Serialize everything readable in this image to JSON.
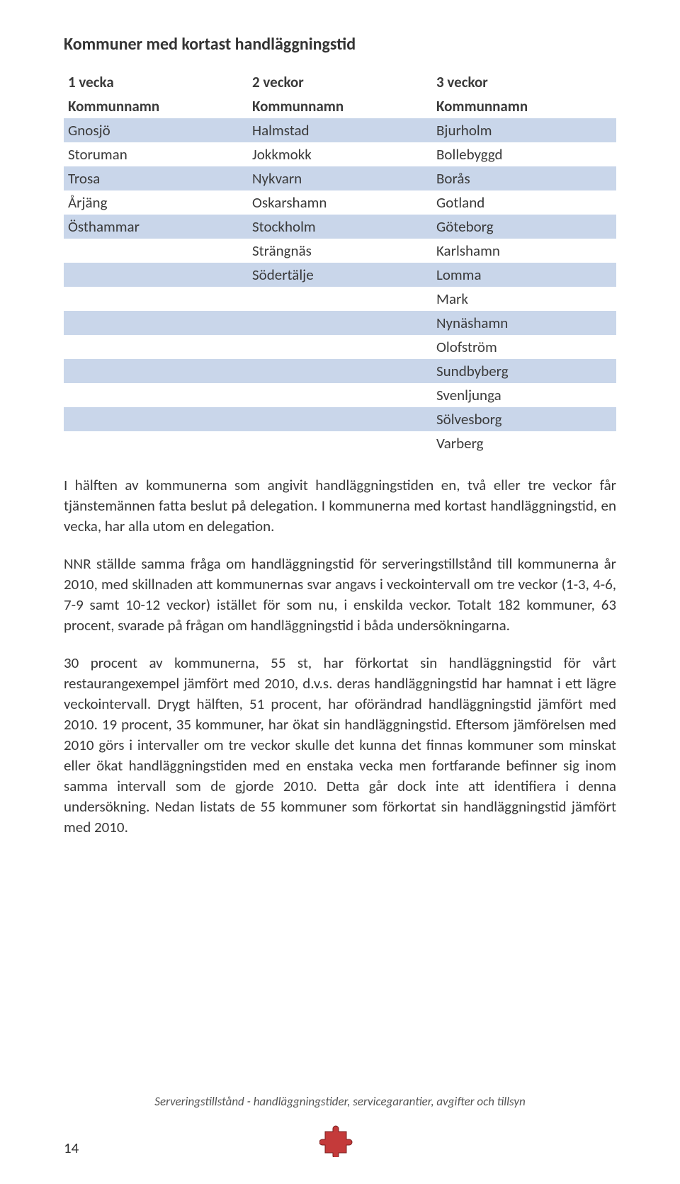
{
  "title": "Kommuner med kortast handläggningstid",
  "table": {
    "header1": [
      "1 vecka",
      "2 veckor",
      "3 veckor"
    ],
    "header2": [
      "Kommunnamn",
      "Kommunnamn",
      "Kommunnamn"
    ],
    "rows": [
      [
        "Gnosjö",
        "Halmstad",
        "Bjurholm"
      ],
      [
        "Storuman",
        "Jokkmokk",
        "Bollebyggd"
      ],
      [
        "Trosa",
        "Nykvarn",
        "Borås"
      ],
      [
        "Årjäng",
        "Oskarshamn",
        "Gotland"
      ],
      [
        "Östhammar",
        "Stockholm",
        "Göteborg"
      ],
      [
        "",
        "Strängnäs",
        "Karlshamn"
      ],
      [
        "",
        "Södertälje",
        "Lomma"
      ],
      [
        "",
        "",
        "Mark"
      ],
      [
        "",
        "",
        "Nynäshamn"
      ],
      [
        "",
        "",
        "Olofström"
      ],
      [
        "",
        "",
        "Sundbyberg"
      ],
      [
        "",
        "",
        "Svenljunga"
      ],
      [
        "",
        "",
        "Sölvesborg"
      ],
      [
        "",
        "",
        "Varberg"
      ]
    ],
    "band_colors": [
      "#c9d6ea",
      "#ffffff"
    ],
    "col_widths": [
      "33.3%",
      "33.3%",
      "33.3%"
    ]
  },
  "paragraphs": [
    "I hälften av kommunerna som angivit handläggningstiden en, två eller tre veckor får tjänstemännen fatta beslut på delegation. I kommunerna med kortast handläggningstid, en vecka, har alla utom en delegation.",
    "NNR ställde samma fråga om handläggningstid för serveringstillstånd till kommunerna år 2010, med skillnaden att kommunernas svar angavs i veckointervall om tre veckor (1-3, 4-6, 7-9 samt 10-12 veckor) istället för som nu, i enskilda veckor. Totalt 182 kommuner, 63 procent, svarade på frågan om handläggningstid i båda undersökningarna.",
    "30 procent av kommunerna, 55 st, har förkortat sin handläggningstid för vårt restaurangexempel jämfört med 2010, d.v.s. deras handläggningstid har hamnat i ett lägre veckointervall. Drygt hälften, 51 procent, har oförändrad handläggningstid jämfört med 2010. 19 procent, 35 kommuner, har ökat sin handläggningstid. Eftersom jämförelsen med 2010 görs i intervaller om tre veckor skulle det kunna det finnas kommuner som minskat eller ökat handläggningstiden med en enstaka vecka men fortfarande befinner sig inom samma intervall som de gjorde 2010. Detta går dock inte att identifiera i denna undersökning. Nedan listats de 55 kommuner som förkortat sin handläggningstid jämfört med 2010."
  ],
  "footer": {
    "line": "Serveringstillstånd - handläggningstider, servicegarantier, avgifter och tillsyn",
    "page_number": "14",
    "puzzle_colors": {
      "main": "#c43a3a",
      "shadow": "#7a1f1f"
    }
  },
  "colors": {
    "text": "#3a3a3a",
    "background": "#ffffff"
  },
  "fontsize": {
    "title": 24,
    "body": 21,
    "footer": 17
  }
}
